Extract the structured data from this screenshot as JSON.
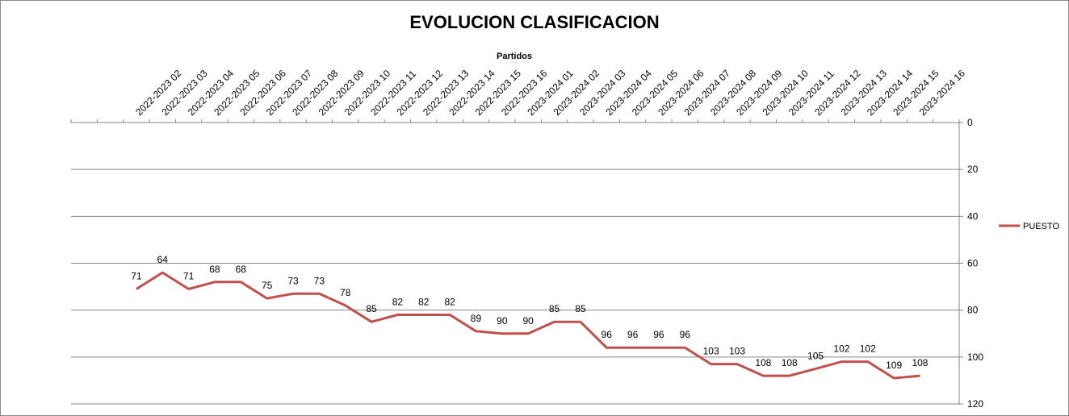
{
  "chart_data": {
    "type": "line",
    "title": "EVOLUCION CLASIFICACION",
    "xlabel": "Partidos",
    "ylabel": "",
    "y_axis_position": "right",
    "y_axis_reversed": true,
    "ylim": [
      0,
      120
    ],
    "yticks": [
      0,
      20,
      40,
      60,
      80,
      100,
      120
    ],
    "grid": "horizontal",
    "legend_position": "right",
    "categories": [
      "",
      "",
      "2022-2023 02",
      "2022-2023 03",
      "2022-2023 04",
      "2022-2023 05",
      "2022-2023 06",
      "2022-2023 07",
      "2022-2023 08",
      "2022-2023 09",
      "2022-2023 10",
      "2022-2023 11",
      "2022-2023 12",
      "2022-2023 13",
      "2022-2023 14",
      "2022-2023 15",
      "2022-2023 16",
      "2023-2024 01",
      "2023-2024 02",
      "2023-2024 03",
      "2023-2024 04",
      "2023-2024 05",
      "2023-2024 06",
      "2023-2024 07",
      "2023-2024 08",
      "2023-2024 09",
      "2023-2024 10",
      "2023-2024 11",
      "2023-2024 12",
      "2023-2024 13",
      "2023-2024 14",
      "2023-2024 15",
      "2023-2024 16",
      ""
    ],
    "series": [
      {
        "name": "PUESTO",
        "color": "#c0504d",
        "values": [
          null,
          null,
          71,
          64,
          71,
          68,
          68,
          75,
          73,
          73,
          78,
          85,
          82,
          82,
          82,
          89,
          90,
          90,
          85,
          85,
          96,
          96,
          96,
          96,
          103,
          103,
          108,
          108,
          105,
          102,
          102,
          109,
          108,
          null
        ]
      }
    ]
  }
}
